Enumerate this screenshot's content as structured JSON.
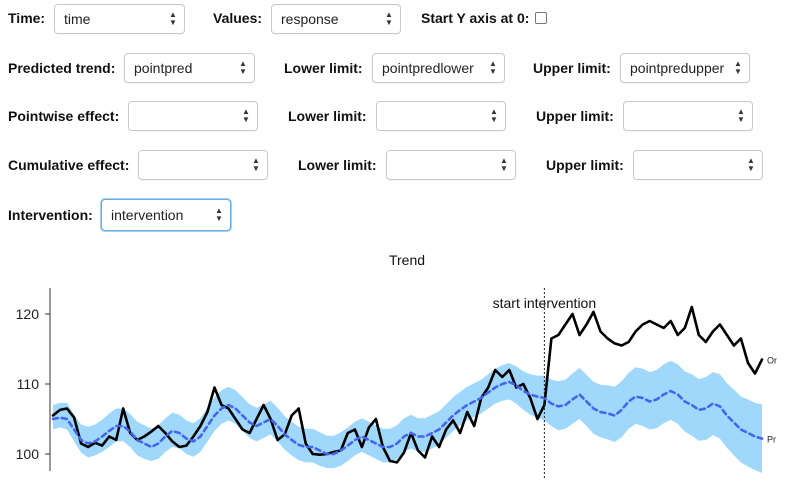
{
  "controls": {
    "time_label": "Time:",
    "time_value": "time",
    "values_label": "Values:",
    "values_value": "response",
    "start_y_label": "Start Y axis at 0:",
    "predicted_label": "Predicted trend:",
    "predicted_value": "pointpred",
    "pred_lower_label": "Lower limit:",
    "pred_lower_value": "pointpredlower",
    "pred_upper_label": "Upper limit:",
    "pred_upper_value": "pointpredupper",
    "pointwise_label": "Pointwise effect:",
    "pointwise_value": "",
    "pw_lower_label": "Lower limit:",
    "pw_lower_value": "",
    "pw_upper_label": "Upper limit:",
    "pw_upper_value": "",
    "cumulative_label": "Cumulative effect:",
    "cumulative_value": "",
    "cum_lower_label": "Lower limit:",
    "cum_lower_value": "",
    "cum_upper_label": "Upper limit:",
    "cum_upper_value": "",
    "intervention_label": "Intervention:",
    "intervention_value": "intervention"
  },
  "chart_data": {
    "type": "line",
    "title": "Trend",
    "annotation": "start intervention",
    "intervention_x": 70,
    "xlim": [
      0,
      101
    ],
    "ylim": [
      98,
      122
    ],
    "yticks": [
      100,
      110,
      120
    ],
    "colors": {
      "original": "#000000",
      "predicted": "#4466ee",
      "band": "#9fd8fb"
    },
    "series": [
      {
        "name": "Or",
        "values": [
          105.5,
          106.3,
          106.5,
          105.2,
          101.5,
          101.0,
          101.6,
          101.2,
          102.5,
          102.0,
          106.5,
          103.0,
          102.0,
          102.5,
          103.2,
          104.0,
          103.0,
          101.8,
          101.0,
          101.2,
          102.5,
          104.0,
          106.0,
          109.5,
          107.0,
          106.5,
          105.0,
          103.5,
          103.0,
          105.0,
          107.0,
          105.0,
          102.0,
          102.8,
          105.5,
          106.5,
          101.5,
          100.0,
          99.9,
          100.0,
          100.3,
          100.5,
          103.0,
          103.5,
          101.0,
          103.8,
          105.0,
          101.0,
          99.0,
          98.8,
          100.2,
          103.0,
          100.5,
          99.5,
          102.5,
          101.0,
          103.5,
          104.8,
          103.0,
          106.0,
          104.0,
          108.0,
          109.5,
          112.0,
          111.0,
          112.0,
          109.5,
          110.0,
          108.0,
          105.0,
          107.0,
          116.5,
          117.0,
          118.5,
          120.0,
          117.0,
          118.5,
          120.3,
          117.5,
          116.5,
          115.8,
          115.5,
          116.0,
          117.5,
          118.5,
          119.0,
          118.5,
          118.0,
          119.0,
          117.0,
          118.0,
          121.0,
          117.0,
          116.0,
          117.5,
          118.5,
          117.0,
          115.5,
          116.5,
          113.0,
          111.5,
          113.5
        ]
      },
      {
        "name": "Pr",
        "values": [
          105.0,
          105.2,
          105.0,
          103.5,
          102.0,
          101.5,
          101.8,
          102.5,
          103.3,
          104.0,
          104.0,
          103.2,
          102.0,
          101.5,
          101.0,
          101.5,
          102.5,
          103.3,
          103.0,
          102.2,
          101.8,
          102.5,
          104.0,
          105.5,
          106.5,
          107.0,
          106.5,
          105.5,
          104.5,
          104.0,
          104.5,
          105.0,
          104.0,
          102.8,
          102.0,
          101.3,
          101.0,
          101.0,
          100.5,
          100.0,
          100.0,
          100.5,
          101.2,
          102.0,
          102.5,
          102.0,
          101.5,
          101.0,
          101.0,
          101.5,
          102.5,
          103.0,
          102.5,
          102.5,
          103.0,
          103.5,
          104.5,
          105.5,
          106.3,
          107.0,
          107.5,
          108.0,
          108.8,
          109.5,
          110.0,
          110.3,
          109.8,
          109.0,
          108.5,
          108.2,
          108.0,
          107.2,
          106.8,
          107.0,
          107.8,
          108.5,
          107.5,
          106.5,
          106.0,
          105.8,
          105.5,
          106.3,
          107.5,
          108.2,
          108.0,
          107.5,
          107.8,
          108.5,
          109.0,
          108.5,
          107.5,
          107.0,
          106.3,
          106.5,
          107.2,
          106.8,
          105.5,
          104.5,
          103.5,
          103.0,
          102.5,
          102.2
        ]
      }
    ],
    "band_lower": [
      103.5,
      103.8,
      103.5,
      101.8,
      100.2,
      99.5,
      99.8,
      100.3,
      101.0,
      101.8,
      101.8,
      101.0,
      99.8,
      99.3,
      99.0,
      99.3,
      100.3,
      101.0,
      100.8,
      100.0,
      99.6,
      100.3,
      101.8,
      103.3,
      104.3,
      104.8,
      104.3,
      103.3,
      102.3,
      101.8,
      102.3,
      102.8,
      101.8,
      100.6,
      99.8,
      99.1,
      98.8,
      98.8,
      98.3,
      98.0,
      98.0,
      98.3,
      99.0,
      99.8,
      100.3,
      99.8,
      99.3,
      98.8,
      98.8,
      99.3,
      100.3,
      100.8,
      100.3,
      100.3,
      100.8,
      101.3,
      102.3,
      103.3,
      104.1,
      104.8,
      105.3,
      105.8,
      106.5,
      107.2,
      107.6,
      107.8,
      107.2,
      106.3,
      105.6,
      105.2,
      104.8,
      104.0,
      103.4,
      103.6,
      104.3,
      105.0,
      104.0,
      102.9,
      102.4,
      102.1,
      101.7,
      102.4,
      103.6,
      104.3,
      104.0,
      103.5,
      103.7,
      104.4,
      104.9,
      104.3,
      103.2,
      102.6,
      101.9,
      102.0,
      102.7,
      102.2,
      100.9,
      99.8,
      98.8,
      98.2,
      97.7,
      97.3
    ],
    "band_upper": [
      107.0,
      107.3,
      107.3,
      105.6,
      104.2,
      103.9,
      104.2,
      104.9,
      105.8,
      106.5,
      106.5,
      105.7,
      104.6,
      104.1,
      103.6,
      104.1,
      105.1,
      105.9,
      105.6,
      104.8,
      104.4,
      105.1,
      106.6,
      108.1,
      109.1,
      109.6,
      109.1,
      108.1,
      107.1,
      106.6,
      107.1,
      107.6,
      106.6,
      105.4,
      104.6,
      103.9,
      103.6,
      103.6,
      103.1,
      102.6,
      102.6,
      103.1,
      103.8,
      104.6,
      105.1,
      104.6,
      104.1,
      103.6,
      103.6,
      104.1,
      105.1,
      105.6,
      105.1,
      105.1,
      105.6,
      106.1,
      107.1,
      108.1,
      108.9,
      109.6,
      110.1,
      110.6,
      111.4,
      112.2,
      112.7,
      113.0,
      112.5,
      111.8,
      111.4,
      111.2,
      111.2,
      110.6,
      110.4,
      110.6,
      111.5,
      112.3,
      111.3,
      110.3,
      109.9,
      109.8,
      109.6,
      110.4,
      111.6,
      112.4,
      112.2,
      111.7,
      112.0,
      112.8,
      113.3,
      112.8,
      111.8,
      111.4,
      110.7,
      111.0,
      111.7,
      111.4,
      110.1,
      109.2,
      108.2,
      107.8,
      107.3,
      107.1
    ]
  }
}
